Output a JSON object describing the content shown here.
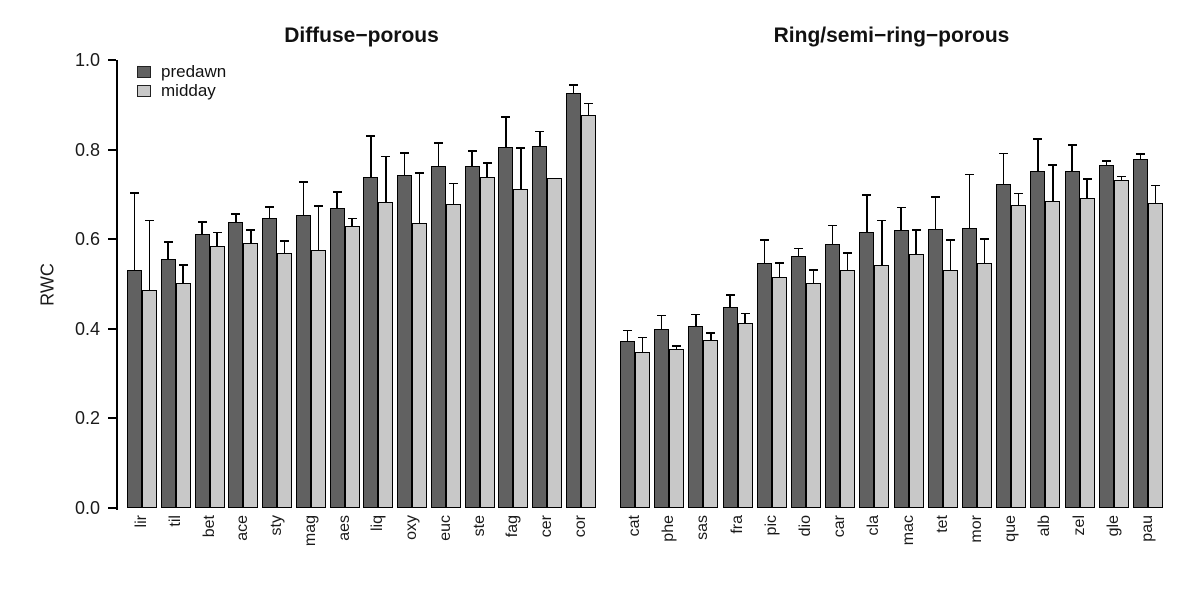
{
  "figure": {
    "ylabel": "RWC",
    "legend": {
      "items": [
        {
          "label": "predawn",
          "color": "#616161"
        },
        {
          "label": "midday",
          "color": "#c8c8c8"
        }
      ]
    },
    "colors": {
      "predawn_fill": "#616161",
      "midday_fill": "#c8c8c8",
      "outline": "#000000",
      "background": "#ffffff"
    }
  },
  "chart_data": [
    {
      "type": "bar",
      "title": "Diffuse−porous",
      "categories": [
        "lir",
        "til",
        "bet",
        "ace",
        "sty",
        "mag",
        "aes",
        "liq",
        "oxy",
        "euc",
        "ste",
        "fag",
        "cer",
        "cor"
      ],
      "series": [
        {
          "name": "predawn",
          "color": "#616161",
          "values": [
            0.531,
            0.556,
            0.611,
            0.638,
            0.648,
            0.655,
            0.67,
            0.739,
            0.743,
            0.764,
            0.763,
            0.805,
            0.808,
            0.927
          ],
          "errors_up": [
            0.172,
            0.038,
            0.028,
            0.018,
            0.024,
            0.073,
            0.036,
            0.091,
            0.05,
            0.051,
            0.034,
            0.068,
            0.032,
            0.017
          ]
        },
        {
          "name": "midday",
          "color": "#c8c8c8",
          "values": [
            0.486,
            0.502,
            0.584,
            0.592,
            0.569,
            0.575,
            0.629,
            0.683,
            0.636,
            0.678,
            0.739,
            0.713,
            0.736,
            0.877
          ],
          "errors_up": [
            0.156,
            0.04,
            0.031,
            0.028,
            0.027,
            0.099,
            0.017,
            0.102,
            0.112,
            0.046,
            0.031,
            0.09,
            0.0,
            0.026
          ]
        }
      ],
      "ylabel": "RWC",
      "ylim": [
        0.0,
        1.0
      ],
      "yticks": [
        0.0,
        0.2,
        0.4,
        0.6,
        0.8,
        1.0
      ],
      "ytick_labels": [
        "0.0",
        "0.2",
        "0.4",
        "0.6",
        "0.8",
        "1.0"
      ],
      "grid": false,
      "legend_position": "top-left"
    },
    {
      "type": "bar",
      "title": "Ring/semi−ring−porous",
      "categories": [
        "cat",
        "phe",
        "sas",
        "fra",
        "pic",
        "dio",
        "car",
        "cla",
        "mac",
        "tet",
        "mor",
        "que",
        "alb",
        "zel",
        "gle",
        "pau"
      ],
      "series": [
        {
          "name": "predawn",
          "color": "#616161",
          "values": [
            0.372,
            0.4,
            0.406,
            0.449,
            0.547,
            0.562,
            0.589,
            0.616,
            0.62,
            0.622,
            0.624,
            0.724,
            0.753,
            0.753,
            0.765,
            0.778
          ],
          "errors_up": [
            0.024,
            0.03,
            0.026,
            0.026,
            0.051,
            0.017,
            0.042,
            0.082,
            0.051,
            0.072,
            0.12,
            0.067,
            0.07,
            0.057,
            0.009,
            0.012
          ]
        },
        {
          "name": "midday",
          "color": "#c8c8c8",
          "values": [
            0.349,
            0.355,
            0.374,
            0.413,
            0.516,
            0.502,
            0.531,
            0.543,
            0.566,
            0.531,
            0.547,
            0.676,
            0.686,
            0.692,
            0.733,
            0.68
          ],
          "errors_up": [
            0.032,
            0.007,
            0.017,
            0.021,
            0.031,
            0.029,
            0.038,
            0.099,
            0.054,
            0.067,
            0.054,
            0.026,
            0.079,
            0.043,
            0.007,
            0.04
          ]
        }
      ],
      "ylabel": "RWC",
      "ylim": [
        0.0,
        1.0
      ],
      "yticks": [
        0.0,
        0.2,
        0.4,
        0.6,
        0.8,
        1.0
      ],
      "ytick_labels": [
        "0.0",
        "0.2",
        "0.4",
        "0.6",
        "0.8",
        "1.0"
      ],
      "grid": false,
      "legend_position": "none"
    }
  ]
}
